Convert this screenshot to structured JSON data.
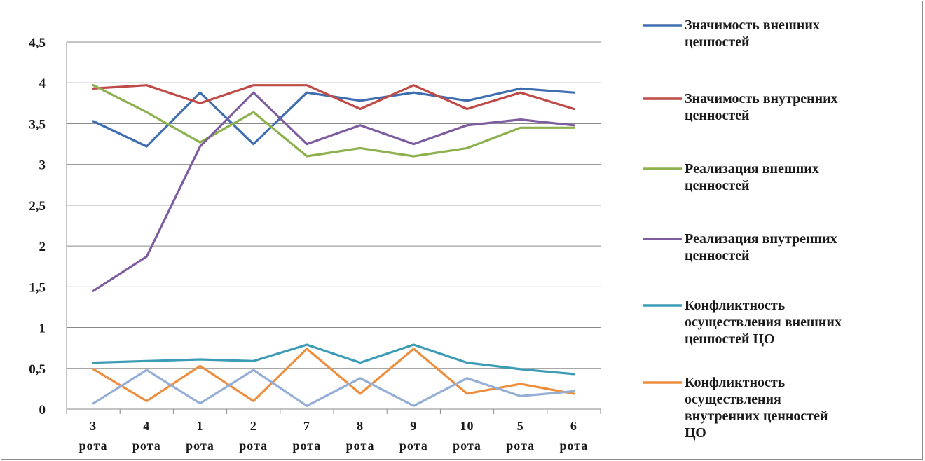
{
  "chart_data": {
    "type": "line",
    "title": "",
    "xlabel": "",
    "ylabel": "",
    "ylim": [
      0,
      4.5
    ],
    "yticks": [
      "0",
      "0,5",
      "1",
      "1,5",
      "2",
      "2,5",
      "3",
      "3,5",
      "4",
      "4,5"
    ],
    "categories": [
      [
        "3",
        "рота"
      ],
      [
        "4",
        "рота"
      ],
      [
        "1",
        "рота"
      ],
      [
        "2",
        "рота"
      ],
      [
        "7",
        "рота"
      ],
      [
        "8",
        "рота"
      ],
      [
        "9",
        "рота"
      ],
      [
        "10",
        "рота"
      ],
      [
        "5",
        "рота"
      ],
      [
        "6",
        "рота"
      ]
    ],
    "grid": true,
    "legend_position": "right",
    "series": [
      {
        "name": "Значимость внешних ценностей",
        "legend_lines": [
          "Значимость внешних",
          "ценностей"
        ],
        "color": "#3F6EB0",
        "values": [
          3.53,
          3.22,
          3.88,
          3.25,
          3.88,
          3.78,
          3.88,
          3.78,
          3.93,
          3.88
        ]
      },
      {
        "name": "Значимость внутренних ценностей",
        "legend_lines": [
          "Значимость внутренних",
          "ценностей"
        ],
        "color": "#BE4B48",
        "values": [
          3.93,
          3.97,
          3.75,
          3.97,
          3.97,
          3.68,
          3.97,
          3.68,
          3.88,
          3.68
        ]
      },
      {
        "name": "Реализация внешних ценностей",
        "legend_lines": [
          "Реализация внешних",
          "ценностей"
        ],
        "color": "#8DB14E",
        "values": [
          3.97,
          3.64,
          3.27,
          3.64,
          3.1,
          3.2,
          3.1,
          3.2,
          3.45,
          3.45
        ]
      },
      {
        "name": "Реализация внутренних ценностей",
        "legend_lines": [
          "Реализация внутренних",
          "ценностей"
        ],
        "color": "#7E5CA0",
        "values": [
          1.45,
          1.87,
          3.22,
          3.88,
          3.25,
          3.48,
          3.25,
          3.48,
          3.55,
          3.48
        ]
      },
      {
        "name": "Конфликтность осуществления внешних ценностей ЦО",
        "legend_lines": [
          "Конфликтность",
          "осуществления внешних",
          "ценностей ЦО"
        ],
        "color": "#3D9CB5",
        "values": [
          0.57,
          0.59,
          0.61,
          0.59,
          0.79,
          0.57,
          0.79,
          0.57,
          0.49,
          0.43
        ]
      },
      {
        "name": "Конфликтность осуществления внутренних ценностей ЦО",
        "legend_lines": [
          "Конфликтность",
          "осуществления",
          "внутренних ценностей",
          "ЦО"
        ],
        "color": "#ED8E3E",
        "values": [
          0.49,
          0.1,
          0.53,
          0.1,
          0.74,
          0.19,
          0.74,
          0.19,
          0.31,
          0.19
        ]
      },
      {
        "name": "",
        "legend_lines": [],
        "color": "#95AED6",
        "values": [
          0.07,
          0.48,
          0.07,
          0.48,
          0.04,
          0.38,
          0.04,
          0.38,
          0.16,
          0.22
        ]
      }
    ]
  }
}
